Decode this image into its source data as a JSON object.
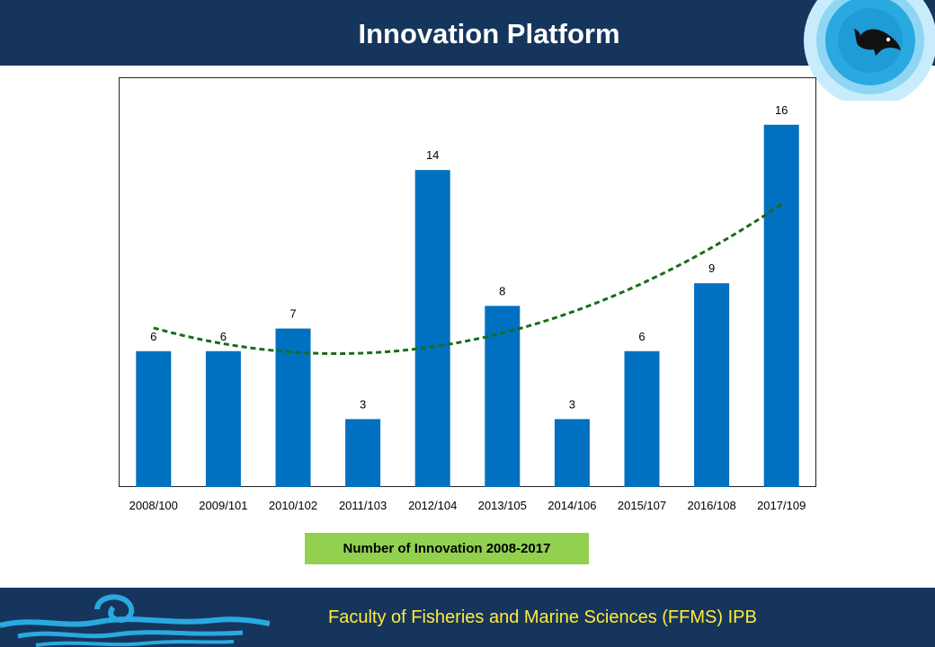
{
  "header": {
    "title": "Innovation Platform"
  },
  "footer": {
    "text": "Faculty of Fisheries and Marine Sciences (FFMS) IPB"
  },
  "caption": {
    "text": "Number of Innovation 2008-2017"
  },
  "colors": {
    "bar": "#0070c0",
    "trend": "#1a6b1a",
    "header_bg": "#16355c",
    "caption_bg": "#92d050",
    "footer_text": "#ffeb3b"
  },
  "icons": {
    "header_logo": "fish-icon",
    "footer_logo": "wave-icon"
  },
  "chart_data": {
    "type": "bar",
    "categories": [
      "2008/100",
      "2009/101",
      "2010/102",
      "2011/103",
      "2012/104",
      "2013/105",
      "2014/106",
      "2015/107",
      "2016/108",
      "2017/109"
    ],
    "values": [
      6,
      6,
      7,
      3,
      14,
      8,
      3,
      6,
      9,
      16
    ],
    "ylim": [
      0,
      18
    ],
    "trendline": {
      "type": "polynomial",
      "style": "dashed"
    },
    "data_labels": true,
    "grid": false
  }
}
